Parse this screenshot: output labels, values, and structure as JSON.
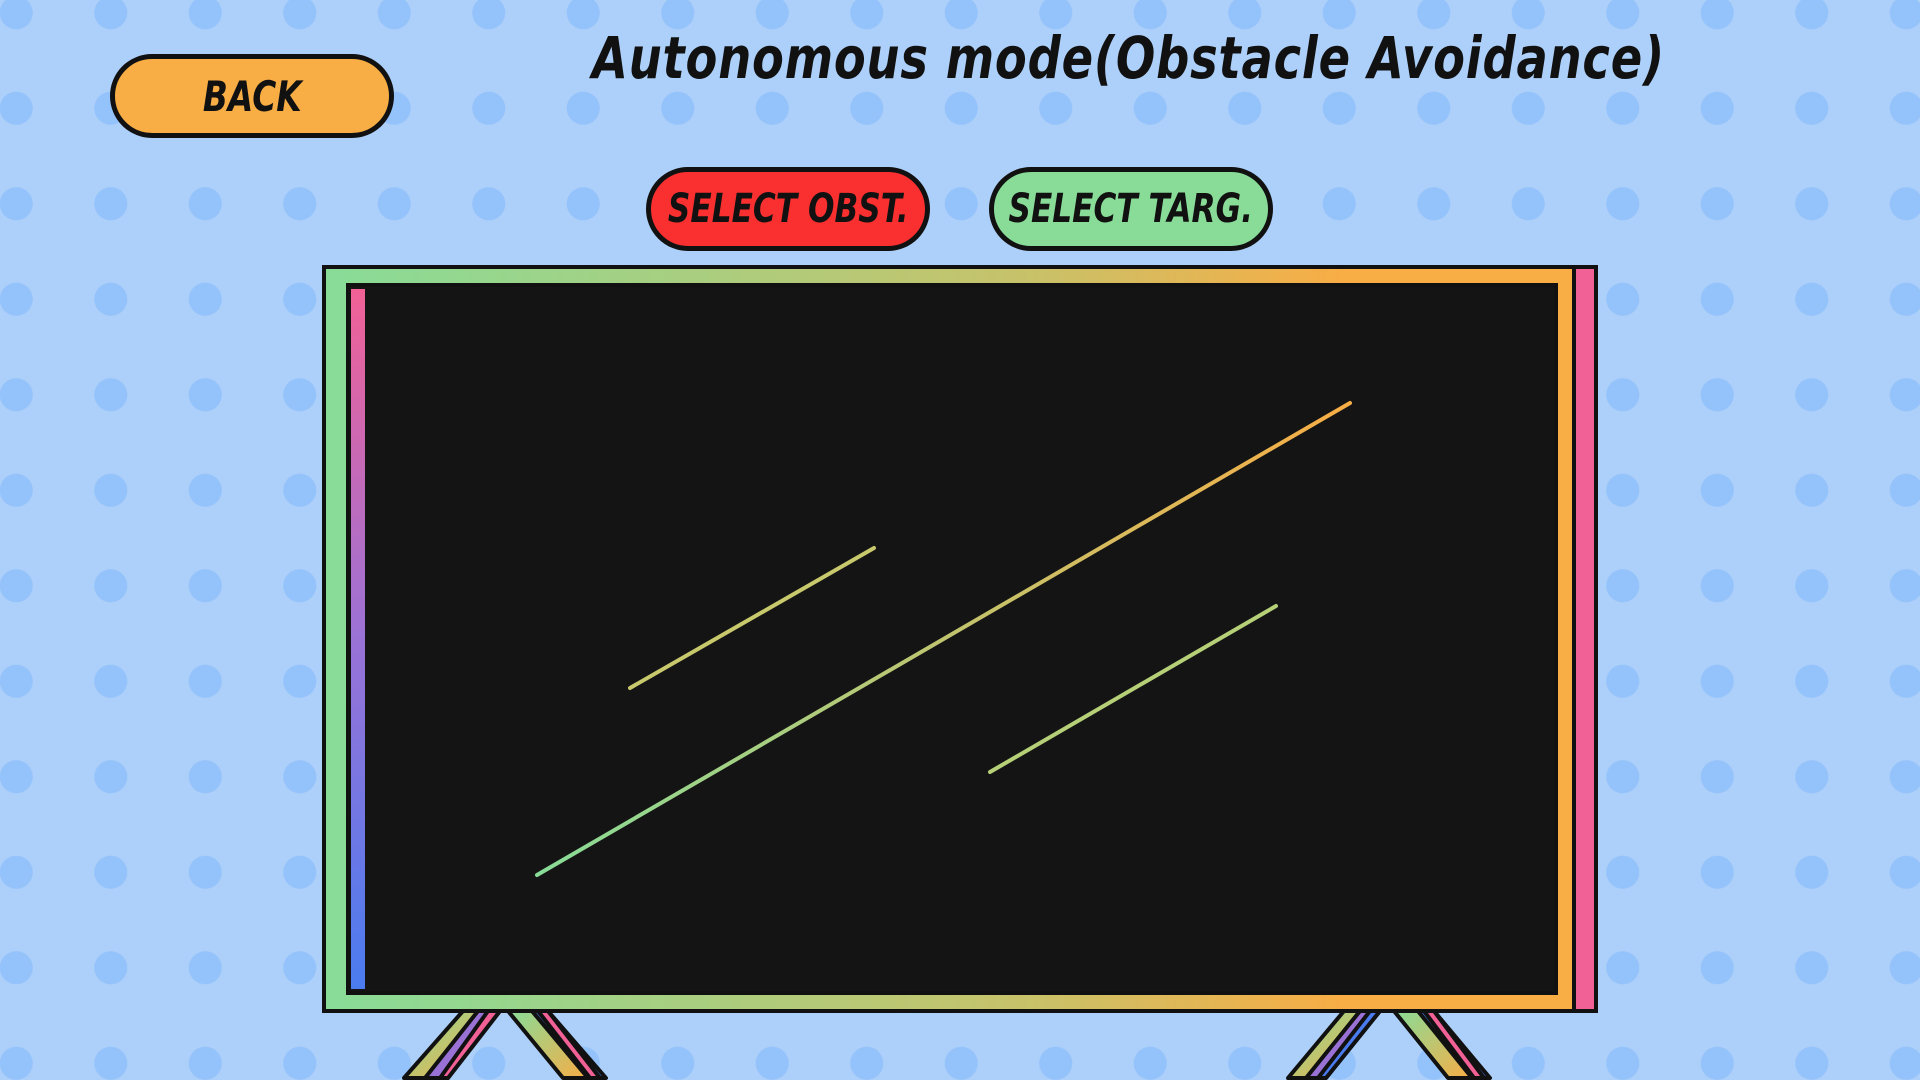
{
  "title": "Autonomous mode(Obstacle Avoidance)",
  "buttons": {
    "back": "BACK",
    "select_obstacle": "SELECT OBST.",
    "select_target": "SELECT TARG."
  },
  "colors": {
    "background": "#add0fa",
    "dots": "#94c2fa",
    "back_button": "#f8ad45",
    "obstacle_button": "#fa3030",
    "target_button": "#88dc98",
    "screen": "#141414",
    "frame_green": "#88dc98",
    "frame_orange": "#f8ad45",
    "accent_pink": "#f26196",
    "accent_blue": "#4a7cf0",
    "accent_purple": "#9a72d6"
  }
}
